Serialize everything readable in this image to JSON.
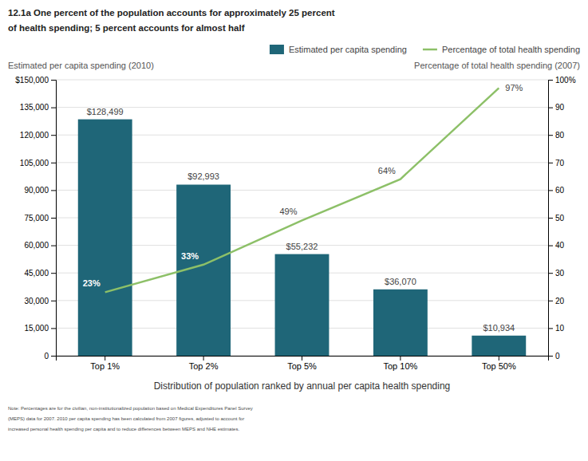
{
  "chart_data": {
    "type": "bar",
    "title": "12.1a  One percent of the population accounts for approximately 25 percent\nof health spending; 5 percent accounts for almost half",
    "ylabel": "Estimated per capita spending (2010)",
    "y2label": "Percentage of total health spending (2007)",
    "xlabel": "Distribution of population ranked by annual per capita health spending",
    "note": "Note: Percentages are for the civilian, non-institutionalized population based on Medical Expenditures Panel Survey\n(MEPS) data for 2007. 2010 per capita spending has been calculated from 2007 figures, adjusted to account for\nincreased personal health spending per capita and to reduce differences between MEPS and NHE estimates.",
    "categories": [
      "Top 1%",
      "Top 2%",
      "Top 5%",
      "Top 10%",
      "Top 50%"
    ],
    "series": [
      {
        "name": "Estimated per capita spending",
        "type": "bar",
        "color": "#1f6678",
        "values": [
          128499,
          92993,
          55232,
          36070,
          10934
        ],
        "value_labels": [
          "$128,499",
          "$92,993",
          "$55,232",
          "$36,070",
          "$10,934"
        ]
      },
      {
        "name": "Percentage of total health spending",
        "type": "line",
        "axis": "y2",
        "color": "#8dc068",
        "values": [
          23,
          33,
          49,
          64,
          97
        ],
        "value_labels": [
          "23%",
          "33%",
          "49%",
          "64%",
          "97%"
        ]
      }
    ],
    "ylim": [
      0,
      150000
    ],
    "yticks": [
      0,
      {
        "value": 15000,
        "label": "15,000"
      },
      {
        "value": 30000,
        "label": "30,000"
      },
      {
        "value": 45000,
        "label": "45,000"
      },
      {
        "value": 60000,
        "label": "60,000"
      },
      {
        "value": 75000,
        "label": "75,000"
      },
      {
        "value": 90000,
        "label": "90,000"
      },
      {
        "value": 105000,
        "label": "105,000"
      },
      {
        "value": 120000,
        "label": "120,000"
      },
      {
        "value": 135000,
        "label": "135,000"
      },
      {
        "value": 150000,
        "label": "$150,000"
      }
    ],
    "y2lim": [
      0,
      100
    ],
    "y2ticks": [
      0,
      10,
      20,
      30,
      40,
      50,
      60,
      70,
      80,
      90,
      {
        "value": 100,
        "label": "100%"
      }
    ],
    "grid": true,
    "legend": "upper right",
    "data_labels": true
  }
}
